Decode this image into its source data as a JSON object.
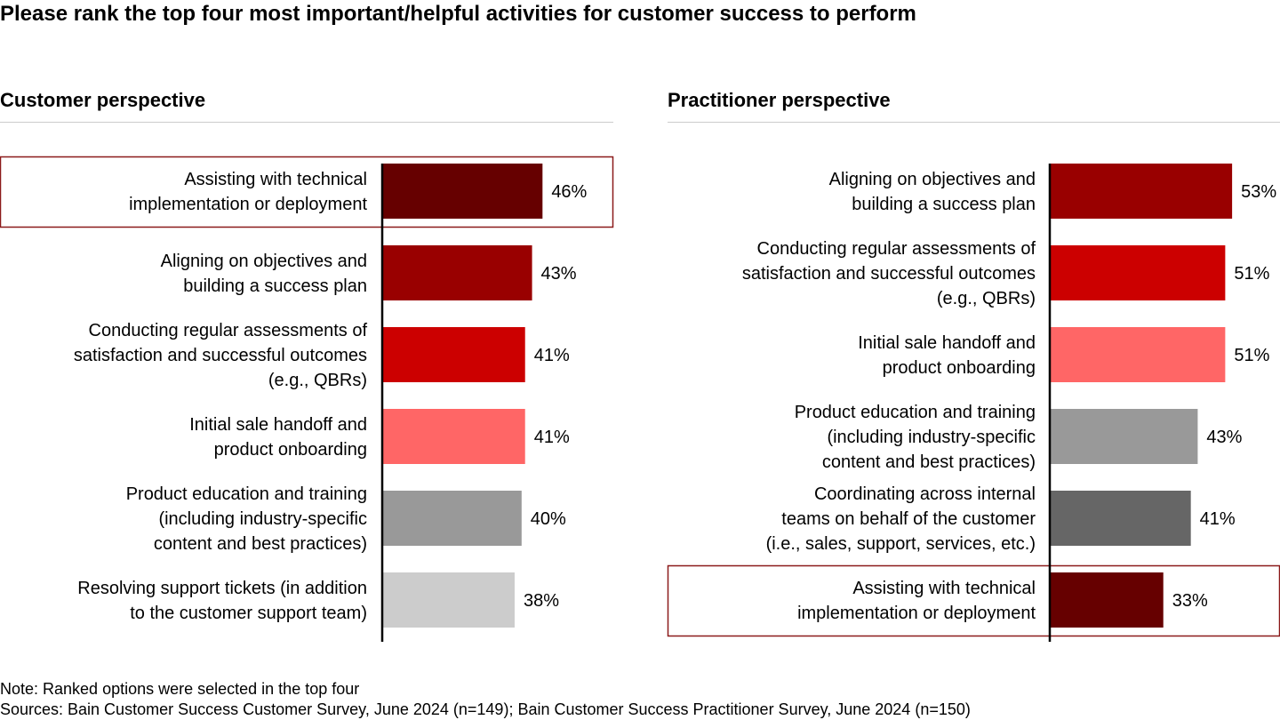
{
  "title": "Please rank the top four most important/helpful activities for customer success to perform",
  "colors": {
    "dark_red": "#660000",
    "red": "#990000",
    "bright_red": "#CC0000",
    "salmon": "#FF6666",
    "gray": "#999999",
    "dark_gray": "#666666",
    "light_gray": "#CCCCCC",
    "highlight_border": "#8B1A1A"
  },
  "chart_data": [
    {
      "type": "bar",
      "orientation": "horizontal",
      "title": "Customer perspective",
      "unit": "%",
      "categories": [
        "Assisting with technical implementation or deployment",
        "Aligning on objectives and building a success plan",
        "Conducting regular assessments of satisfaction and successful outcomes (e.g., QBRs)",
        "Initial sale handoff and product onboarding",
        "Product education and training (including industry-specific content and best practices)",
        "Resolving support tickets (in addition to the customer support team)"
      ],
      "label_lines": [
        [
          "Assisting with technical",
          "implementation or deployment"
        ],
        [
          "Aligning on objectives and",
          "building a success plan"
        ],
        [
          "Conducting regular assessments of",
          "satisfaction and successful outcomes",
          "(e.g., QBRs)"
        ],
        [
          "Initial sale handoff and",
          "product onboarding"
        ],
        [
          "Product education and training",
          "(including industry-specific",
          "content and best practices)"
        ],
        [
          "Resolving support tickets (in addition",
          "to the customer support team)"
        ]
      ],
      "values": [
        46,
        43,
        41,
        41,
        40,
        38
      ],
      "value_labels": [
        "46%",
        "43%",
        "41%",
        "41%",
        "40%",
        "38%"
      ],
      "bar_colors": [
        "#660000",
        "#990000",
        "#CC0000",
        "#FF6666",
        "#999999",
        "#CCCCCC"
      ],
      "highlighted_index": 0
    },
    {
      "type": "bar",
      "orientation": "horizontal",
      "title": "Practitioner perspective",
      "unit": "%",
      "categories": [
        "Aligning on objectives and building a success plan",
        "Conducting regular assessments of satisfaction and successful outcomes (e.g., QBRs)",
        "Initial sale handoff and product onboarding",
        "Product education and training (including industry-specific content and best practices)",
        "Coordinating across internal teams on behalf of the customer (i.e., sales, support, services, etc.)",
        "Assisting with technical implementation or deployment"
      ],
      "label_lines": [
        [
          "Aligning on objectives and",
          "building a success plan"
        ],
        [
          "Conducting regular assessments of",
          "satisfaction and successful outcomes",
          "(e.g., QBRs)"
        ],
        [
          "Initial sale handoff and",
          "product onboarding"
        ],
        [
          "Product education and training",
          "(including industry-specific",
          "content and best practices)"
        ],
        [
          "Coordinating across internal",
          "teams on behalf of the customer",
          "(i.e., sales, support, services, etc.)"
        ],
        [
          "Assisting with technical",
          "implementation or deployment"
        ]
      ],
      "values": [
        53,
        51,
        51,
        43,
        41,
        33
      ],
      "value_labels": [
        "53%",
        "51%",
        "51%",
        "43%",
        "41%",
        "33%"
      ],
      "bar_colors": [
        "#990000",
        "#CC0000",
        "#FF6666",
        "#999999",
        "#666666",
        "#660000"
      ],
      "highlighted_index": 5
    }
  ],
  "footer": {
    "note": "Note: Ranked options were selected in the top four",
    "sources": "Sources: Bain Customer Success Customer Survey, June 2024 (n=149); Bain Customer Success Practitioner Survey, June 2024 (n=150)"
  }
}
